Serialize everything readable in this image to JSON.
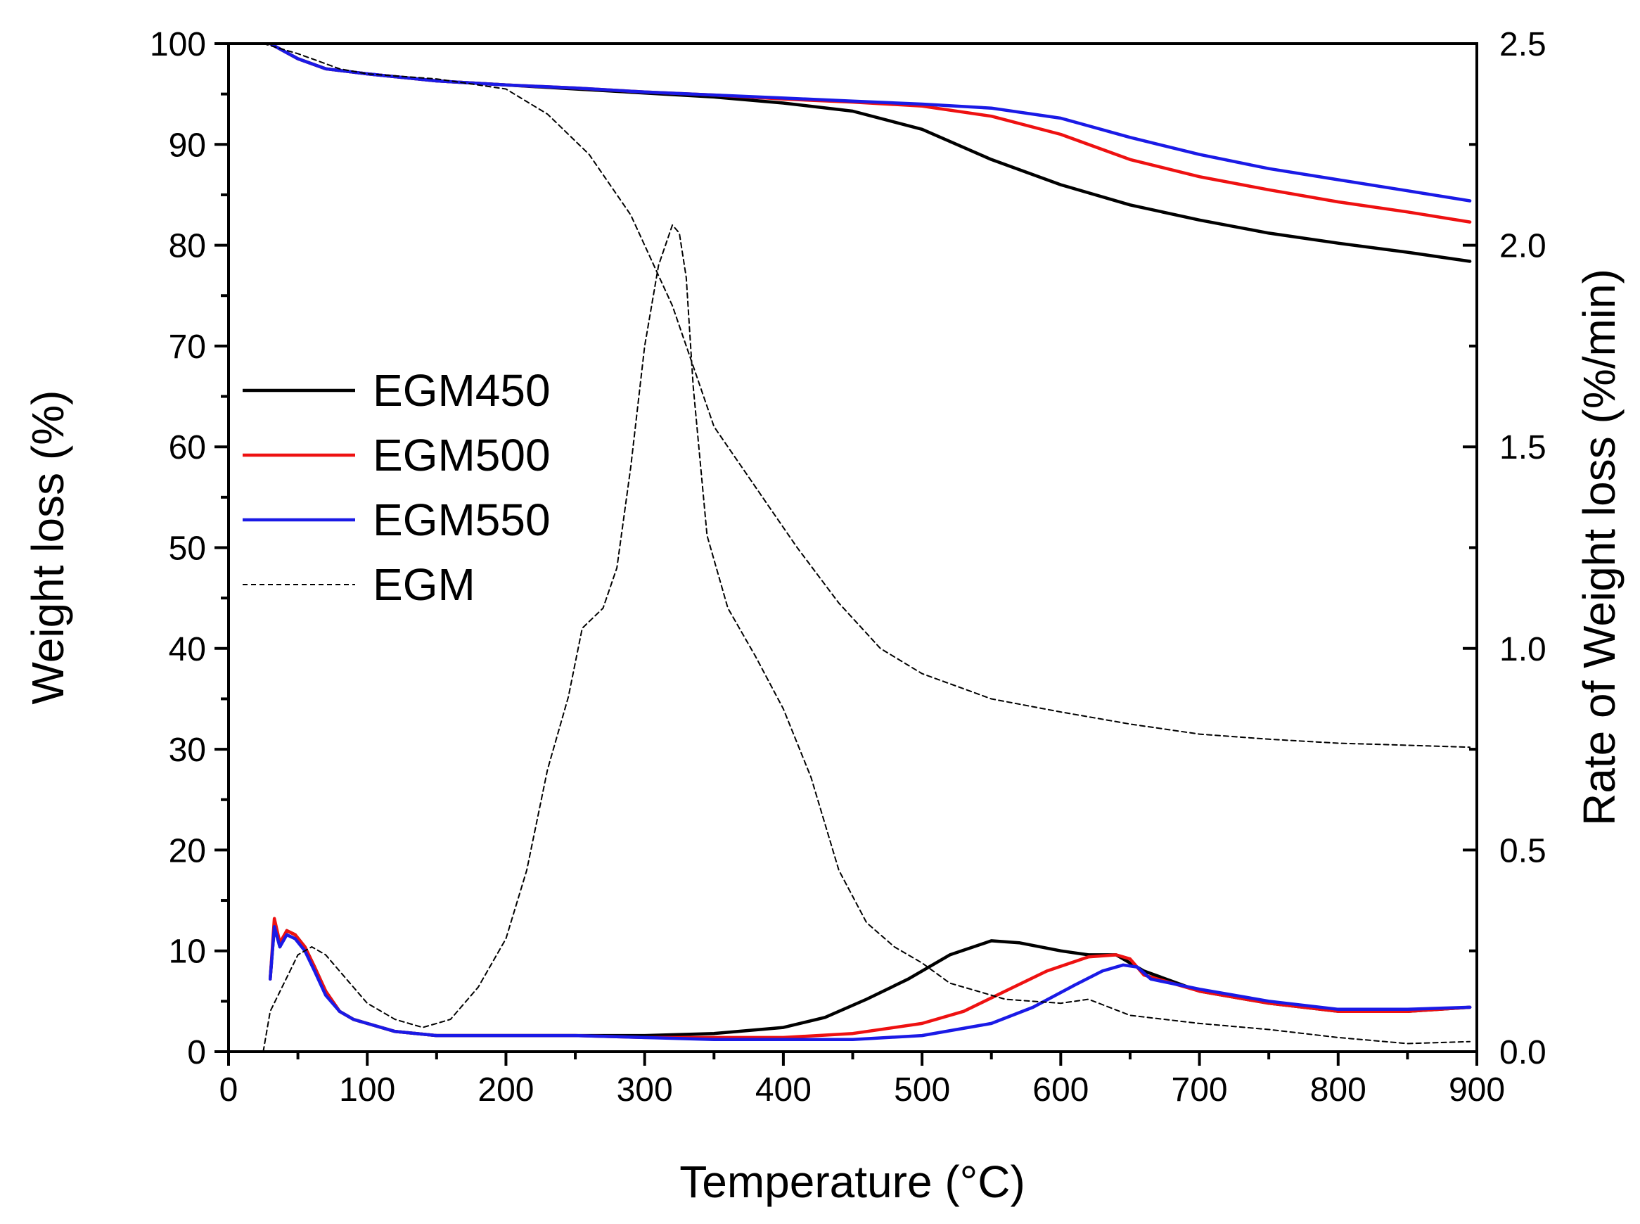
{
  "chart_data": {
    "type": "line",
    "title": "",
    "xlabel": "Temperature (°C)",
    "ylabel_left": "Weight loss (%)",
    "ylabel_right": "Rate of Weight loss (%/min)",
    "xlim": [
      0,
      900
    ],
    "ylim_left": [
      0,
      100
    ],
    "ylim_right": [
      0,
      2.5
    ],
    "x_ticks": [
      "0",
      "100",
      "200",
      "300",
      "400",
      "500",
      "600",
      "700",
      "800",
      "900"
    ],
    "y_left_ticks": [
      "0",
      "10",
      "20",
      "30",
      "40",
      "50",
      "60",
      "70",
      "80",
      "90",
      "100"
    ],
    "y_right_ticks": [
      "0.0",
      "0.5",
      "1.0",
      "1.5",
      "2.0",
      "2.5"
    ],
    "grid": false,
    "legend_position": "middle-left",
    "legend": [
      {
        "name": "EGM450",
        "color": "#000000",
        "style": "solid"
      },
      {
        "name": "EGM500",
        "color": "#ee1111",
        "style": "solid"
      },
      {
        "name": "EGM550",
        "color": "#1a1ae6",
        "style": "solid"
      },
      {
        "name": "EGM",
        "color": "#000000",
        "style": "dashed"
      }
    ],
    "series": [
      {
        "name": "EGM450",
        "kind": "weight",
        "axis": "left",
        "color": "#000000",
        "dash": false,
        "x": [
          30,
          50,
          70,
          100,
          150,
          200,
          250,
          300,
          350,
          400,
          450,
          500,
          550,
          600,
          650,
          700,
          750,
          800,
          850,
          895
        ],
        "y": [
          100,
          98.5,
          97.5,
          97,
          96.3,
          95.9,
          95.5,
          95.1,
          94.7,
          94.1,
          93.3,
          91.5,
          88.5,
          86,
          84,
          82.5,
          81.2,
          80.2,
          79.3,
          78.4
        ]
      },
      {
        "name": "EGM500",
        "kind": "weight",
        "axis": "left",
        "color": "#ee1111",
        "dash": false,
        "x": [
          30,
          50,
          70,
          100,
          150,
          200,
          250,
          300,
          350,
          400,
          450,
          500,
          550,
          600,
          650,
          700,
          750,
          800,
          850,
          895
        ],
        "y": [
          100,
          98.5,
          97.5,
          97,
          96.3,
          95.9,
          95.6,
          95.2,
          94.9,
          94.5,
          94.2,
          93.8,
          92.8,
          91,
          88.5,
          86.8,
          85.5,
          84.3,
          83.3,
          82.3
        ]
      },
      {
        "name": "EGM550",
        "kind": "weight",
        "axis": "left",
        "color": "#1a1ae6",
        "dash": false,
        "x": [
          30,
          50,
          70,
          100,
          150,
          200,
          250,
          300,
          350,
          400,
          450,
          500,
          550,
          600,
          650,
          700,
          750,
          800,
          850,
          895
        ],
        "y": [
          100,
          98.5,
          97.5,
          97,
          96.3,
          95.9,
          95.6,
          95.2,
          94.9,
          94.6,
          94.3,
          94,
          93.6,
          92.6,
          90.7,
          89,
          87.6,
          86.5,
          85.4,
          84.4
        ]
      },
      {
        "name": "EGM",
        "kind": "weight",
        "axis": "left",
        "color": "#000000",
        "dash": true,
        "x": [
          25,
          50,
          80,
          100,
          150,
          200,
          230,
          260,
          290,
          320,
          350,
          380,
          410,
          440,
          470,
          500,
          550,
          600,
          650,
          700,
          750,
          800,
          850,
          895
        ],
        "y": [
          100,
          99,
          97.5,
          97,
          96.5,
          95.5,
          93,
          89,
          83,
          74,
          62,
          56,
          50,
          44.5,
          40,
          37.5,
          35,
          33.7,
          32.5,
          31.5,
          31,
          30.6,
          30.4,
          30.2
        ]
      },
      {
        "name": "EGM450",
        "kind": "rate",
        "axis": "right",
        "color": "#000000",
        "dash": false,
        "x": [
          30,
          33,
          37,
          42,
          48,
          55,
          62,
          70,
          80,
          90,
          100,
          120,
          150,
          200,
          250,
          300,
          350,
          400,
          430,
          460,
          490,
          520,
          550,
          570,
          600,
          620,
          640,
          660,
          700,
          750,
          800,
          850,
          895
        ],
        "y": [
          0.18,
          0.31,
          0.26,
          0.3,
          0.29,
          0.26,
          0.21,
          0.15,
          0.1,
          0.08,
          0.07,
          0.05,
          0.04,
          0.04,
          0.04,
          0.04,
          0.045,
          0.06,
          0.085,
          0.13,
          0.18,
          0.24,
          0.275,
          0.27,
          0.25,
          0.24,
          0.24,
          0.2,
          0.15,
          0.12,
          0.1,
          0.1,
          0.11
        ]
      },
      {
        "name": "EGM500",
        "kind": "rate",
        "axis": "right",
        "color": "#ee1111",
        "dash": false,
        "x": [
          30,
          33,
          37,
          42,
          48,
          55,
          62,
          70,
          80,
          90,
          100,
          120,
          150,
          200,
          250,
          300,
          350,
          400,
          450,
          500,
          530,
          560,
          590,
          620,
          640,
          650,
          660,
          700,
          750,
          800,
          850,
          895
        ],
        "y": [
          0.18,
          0.33,
          0.27,
          0.3,
          0.29,
          0.26,
          0.21,
          0.15,
          0.1,
          0.08,
          0.07,
          0.05,
          0.04,
          0.04,
          0.04,
          0.035,
          0.035,
          0.035,
          0.045,
          0.07,
          0.1,
          0.15,
          0.2,
          0.235,
          0.24,
          0.23,
          0.19,
          0.15,
          0.12,
          0.1,
          0.1,
          0.11
        ]
      },
      {
        "name": "EGM550",
        "kind": "rate",
        "axis": "right",
        "color": "#1a1ae6",
        "dash": false,
        "x": [
          30,
          33,
          37,
          42,
          48,
          55,
          62,
          70,
          80,
          90,
          100,
          120,
          150,
          200,
          250,
          300,
          350,
          400,
          450,
          500,
          550,
          580,
          610,
          630,
          645,
          655,
          665,
          700,
          750,
          800,
          850,
          895
        ],
        "y": [
          0.18,
          0.31,
          0.26,
          0.29,
          0.28,
          0.25,
          0.2,
          0.14,
          0.1,
          0.08,
          0.07,
          0.05,
          0.04,
          0.04,
          0.04,
          0.035,
          0.03,
          0.03,
          0.03,
          0.04,
          0.07,
          0.11,
          0.165,
          0.2,
          0.215,
          0.21,
          0.18,
          0.155,
          0.125,
          0.105,
          0.105,
          0.11
        ]
      },
      {
        "name": "EGM",
        "kind": "rate",
        "axis": "right",
        "color": "#000000",
        "dash": true,
        "x": [
          25,
          30,
          40,
          50,
          60,
          70,
          80,
          100,
          120,
          140,
          160,
          180,
          200,
          215,
          230,
          245,
          255,
          270,
          280,
          290,
          300,
          310,
          320,
          325,
          330,
          335,
          345,
          360,
          380,
          400,
          420,
          440,
          460,
          480,
          500,
          520,
          540,
          560,
          600,
          620,
          650,
          700,
          750,
          800,
          850,
          895
        ],
        "y": [
          0,
          0.1,
          0.17,
          0.24,
          0.26,
          0.24,
          0.2,
          0.12,
          0.08,
          0.06,
          0.08,
          0.16,
          0.28,
          0.45,
          0.7,
          0.88,
          1.05,
          1.1,
          1.2,
          1.45,
          1.75,
          1.95,
          2.05,
          2.03,
          1.92,
          1.65,
          1.28,
          1.1,
          0.98,
          0.85,
          0.68,
          0.45,
          0.32,
          0.26,
          0.22,
          0.17,
          0.15,
          0.13,
          0.12,
          0.13,
          0.09,
          0.07,
          0.055,
          0.035,
          0.02,
          0.025
        ]
      }
    ]
  }
}
